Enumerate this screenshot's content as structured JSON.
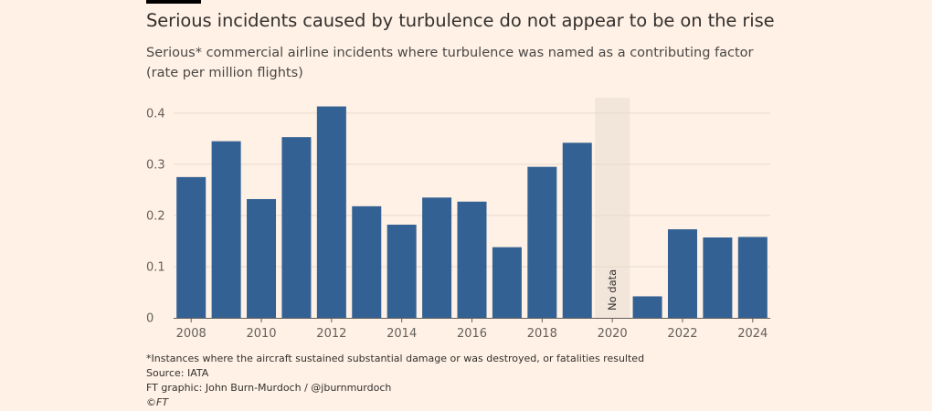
{
  "header": {
    "title": "Serious incidents caused by turbulence do not appear to be on the rise",
    "subtitle": "Serious* commercial airline incidents where turbulence was named as a contributing factor (rate per million flights)"
  },
  "footer": {
    "note": "*Instances where the aircraft sustained substantial damage or was destroyed, or fatalities resulted",
    "source": "Source: IATA",
    "credit": "FT graphic: John Burn-Murdoch / @jburnmurdoch",
    "copyright": "©FT"
  },
  "colors": {
    "bar": "#336193",
    "background": "#FFF1E5",
    "nodata_band": "#F2E5DA",
    "grid": "#E6D9CE",
    "axis": "#66605C"
  },
  "chart_data": {
    "type": "bar",
    "categories": [
      "2008",
      "2009",
      "2010",
      "2011",
      "2012",
      "2013",
      "2014",
      "2015",
      "2016",
      "2017",
      "2018",
      "2019",
      "2020",
      "2021",
      "2022",
      "2023",
      "2024"
    ],
    "values": [
      0.275,
      0.345,
      0.232,
      0.353,
      0.413,
      0.218,
      0.182,
      0.235,
      0.227,
      0.138,
      0.295,
      0.342,
      null,
      0.042,
      0.173,
      0.157,
      0.158
    ],
    "x_tick_labels": [
      "2008",
      "2010",
      "2012",
      "2014",
      "2016",
      "2018",
      "2020",
      "2022",
      "2024"
    ],
    "y_ticks": [
      0,
      0.1,
      0.2,
      0.3,
      0.4
    ],
    "y_tick_labels": [
      "0",
      "0.1",
      "0.2",
      "0.3",
      "0.4"
    ],
    "ylim": [
      0,
      0.43
    ],
    "grid": true,
    "annotation": {
      "category": "2020",
      "text": "No data"
    }
  }
}
